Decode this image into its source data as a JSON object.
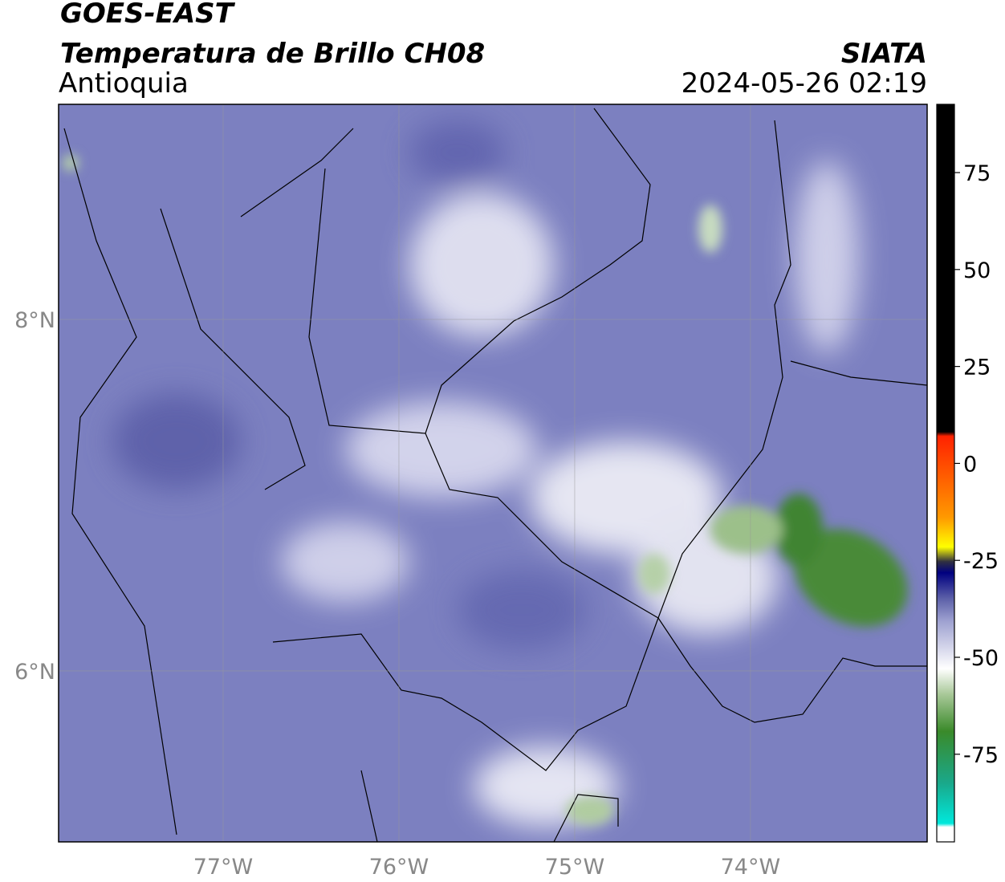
{
  "header": {
    "title": "GOES-EAST",
    "subtitle": "Temperatura de Brillo CH08",
    "region": "Antioquia",
    "source": "SIATA",
    "datetime": "2024-05-26 02:19"
  },
  "map": {
    "lonlim": [
      -77.936,
      -72.995
    ],
    "latlim": [
      5.027,
      9.224
    ],
    "lon_ticks": [
      {
        "value": -77,
        "label": "77°W"
      },
      {
        "value": -76,
        "label": "76°W"
      },
      {
        "value": -75,
        "label": "75°W"
      },
      {
        "value": -74,
        "label": "74°W"
      }
    ],
    "lat_ticks": [
      {
        "value": 8,
        "label": "8°N"
      },
      {
        "value": 6,
        "label": "6°N"
      }
    ]
  },
  "colorbar": {
    "lim": [
      -97.6,
      92.6
    ],
    "ticks": [
      75,
      50,
      25,
      0,
      -25,
      -50,
      -75
    ]
  }
}
